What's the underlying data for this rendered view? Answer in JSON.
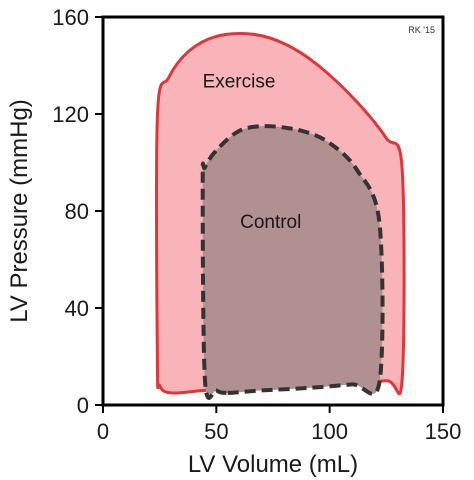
{
  "chart_data": {
    "type": "area",
    "xlabel": "LV Volume (mL)",
    "ylabel": "LV Pressure (mmHg)",
    "xlim": [
      0,
      150
    ],
    "ylim": [
      0,
      160
    ],
    "xticks": [
      0,
      50,
      100,
      150
    ],
    "yticks": [
      0,
      40,
      80,
      120,
      160
    ],
    "grid": false,
    "watermark": "RK '15",
    "series": [
      {
        "name": "Exercise",
        "fill": "#f8b4b8",
        "stroke": "#e0363a",
        "dash": false,
        "points": [
          [
            30,
            5
          ],
          [
            45,
            6
          ],
          [
            70,
            7.5
          ],
          [
            100,
            9
          ],
          [
            125,
            10
          ],
          [
            132,
            11
          ],
          [
            132,
            97
          ],
          [
            125,
            110
          ],
          [
            112,
            125
          ],
          [
            95,
            140
          ],
          [
            80,
            149
          ],
          [
            65,
            153
          ],
          [
            50,
            152
          ],
          [
            38,
            146
          ],
          [
            29,
            135
          ],
          [
            24,
            119
          ],
          [
            24,
            18
          ],
          [
            25,
            8
          ]
        ]
      },
      {
        "name": "Control",
        "fill": "#b09090",
        "stroke": "#333333",
        "dash": true,
        "points": [
          [
            55,
            5
          ],
          [
            70,
            6
          ],
          [
            90,
            7
          ],
          [
            110,
            8.5
          ],
          [
            122,
            9.5
          ],
          [
            122,
            75
          ],
          [
            112,
            97
          ],
          [
            100,
            108
          ],
          [
            88,
            113
          ],
          [
            72,
            115
          ],
          [
            60,
            113
          ],
          [
            50,
            105
          ],
          [
            45,
            98
          ],
          [
            44,
            92
          ],
          [
            45,
            10
          ],
          [
            50,
            6
          ]
        ]
      }
    ],
    "annotations": [
      {
        "text": "Exercise",
        "x": 60,
        "y": 131
      },
      {
        "text": "Control",
        "x": 74,
        "y": 73
      }
    ]
  }
}
